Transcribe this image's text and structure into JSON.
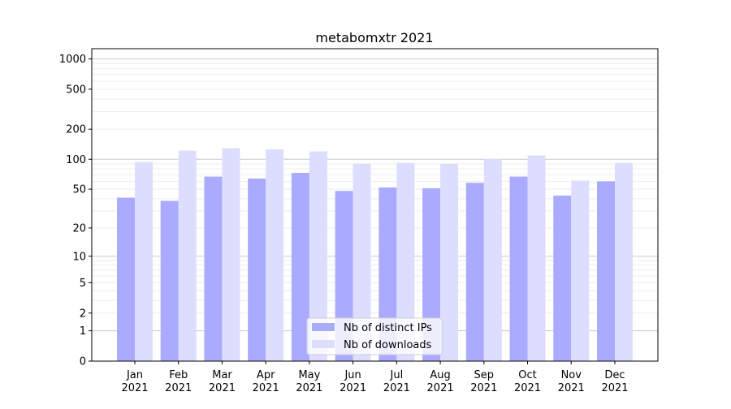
{
  "chart_data": {
    "type": "bar",
    "title": "metabomxtr 2021",
    "xlabel": "",
    "ylabel": "",
    "yscale": "log(1+y)",
    "ylim": [
      0,
      1300
    ],
    "yticks": [
      0,
      1,
      2,
      5,
      10,
      20,
      50,
      100,
      200,
      500,
      1000
    ],
    "grid": true,
    "legend_position": "lower-center",
    "categories": [
      "Jan\n2021",
      "Feb\n2021",
      "Mar\n2021",
      "Apr\n2021",
      "May\n2021",
      "Jun\n2021",
      "Jul\n2021",
      "Aug\n2021",
      "Sep\n2021",
      "Oct\n2021",
      "Nov\n2021",
      "Dec\n2021"
    ],
    "series": [
      {
        "name": "Nb of distinct IPs",
        "color": "#aaaaff",
        "values": [
          41,
          38,
          67,
          64,
          73,
          48,
          52,
          51,
          58,
          67,
          43,
          60
        ]
      },
      {
        "name": "Nb of downloads",
        "color": "#ddddff",
        "values": [
          94,
          122,
          129,
          126,
          120,
          90,
          92,
          90,
          101,
          109,
          61,
          92
        ]
      }
    ]
  }
}
